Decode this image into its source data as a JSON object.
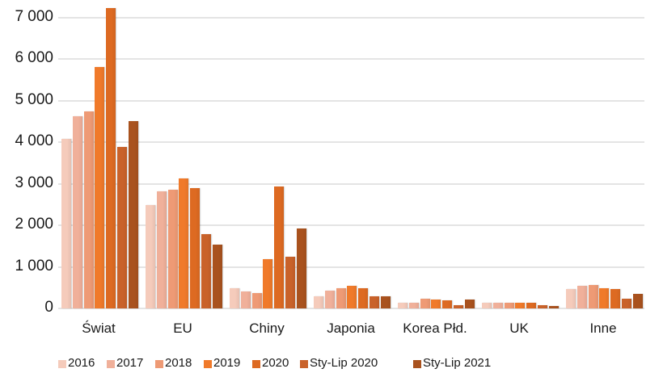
{
  "chart_data": {
    "type": "bar",
    "title": "",
    "xlabel": "",
    "ylabel": "",
    "ylim": [
      0,
      7000
    ],
    "yticks": [
      0,
      1000,
      2000,
      3000,
      4000,
      5000,
      6000,
      7000
    ],
    "ytick_labels": [
      "0",
      "1 000",
      "2 000",
      "3 000",
      "4 000",
      "5 000",
      "6 000",
      "7 000"
    ],
    "grid": true,
    "legend_position": "bottom",
    "categories": [
      "Świat",
      "EU",
      "Chiny",
      "Japonia",
      "Korea Płd.",
      "UK",
      "Inne"
    ],
    "series": [
      {
        "name": "2016",
        "color": "#f5cbbb",
        "values": [
          4090,
          2490,
          490,
          300,
          140,
          130,
          460
        ]
      },
      {
        "name": "2017",
        "color": "#f0b09a",
        "values": [
          4630,
          2815,
          400,
          420,
          140,
          130,
          545
        ]
      },
      {
        "name": "2018",
        "color": "#ee9a75",
        "values": [
          4740,
          2850,
          375,
          485,
          240,
          130,
          570
        ]
      },
      {
        "name": "2019",
        "color": "#f07a2a",
        "values": [
          5820,
          3140,
          1195,
          545,
          215,
          130,
          485
        ]
      },
      {
        "name": "2020",
        "color": "#dd6a22",
        "values": [
          7240,
          2900,
          2930,
          485,
          190,
          130,
          460
        ]
      },
      {
        "name": "Sty-Lip 2020",
        "color": "#c9622a",
        "values": [
          3880,
          1785,
          1245,
          300,
          80,
          80,
          240
        ]
      },
      {
        "name": "Sty-Lip 2021",
        "color": "#a9521e",
        "values": [
          4520,
          1545,
          1925,
          300,
          215,
          55,
          350
        ]
      }
    ]
  }
}
